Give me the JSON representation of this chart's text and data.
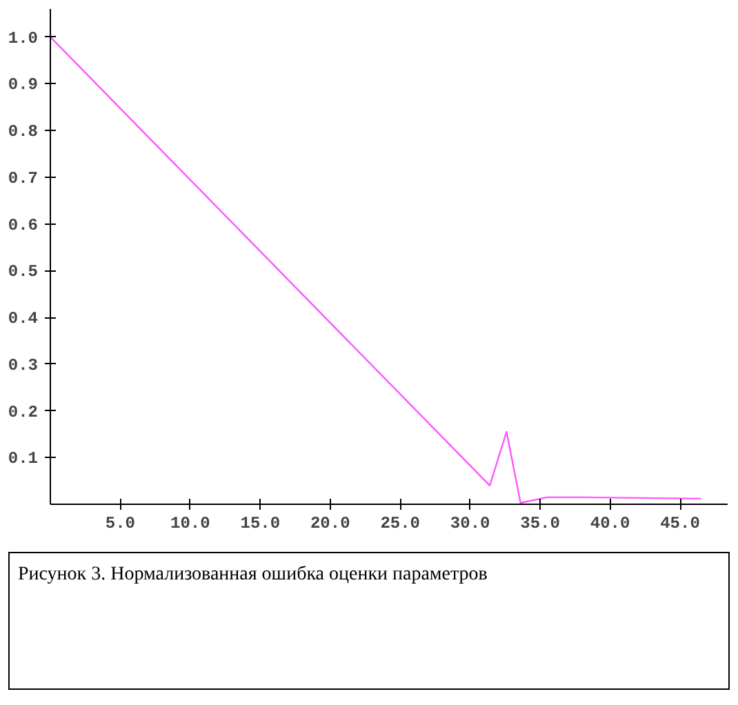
{
  "chart_data": {
    "type": "line",
    "x": [
      0,
      31.4,
      32.6,
      33.6,
      35.5,
      38,
      46.5
    ],
    "series": [
      {
        "color": "#ff55ff",
        "values": [
          1.0,
          0.04,
          0.155,
          0.003,
          0.015,
          0.015,
          0.012
        ]
      }
    ],
    "xlim": [
      0,
      48.4
    ],
    "ylim": [
      0,
      1.06
    ],
    "xticks": [
      {
        "value": 5,
        "label": "5.0"
      },
      {
        "value": 10,
        "label": "10.0"
      },
      {
        "value": 15,
        "label": "15.0"
      },
      {
        "value": 20,
        "label": "20.0"
      },
      {
        "value": 25,
        "label": "25.0"
      },
      {
        "value": 30,
        "label": "30.0"
      },
      {
        "value": 35,
        "label": "35.0"
      },
      {
        "value": 40,
        "label": "40.0"
      },
      {
        "value": 45,
        "label": "45.0"
      }
    ],
    "yticks": [
      {
        "value": 0.1,
        "label": "0.1"
      },
      {
        "value": 0.2,
        "label": "0.2"
      },
      {
        "value": 0.3,
        "label": "0.3"
      },
      {
        "value": 0.4,
        "label": "0.4"
      },
      {
        "value": 0.5,
        "label": "0.5"
      },
      {
        "value": 0.6,
        "label": "0.6"
      },
      {
        "value": 0.7,
        "label": "0.7"
      },
      {
        "value": 0.8,
        "label": "0.8"
      },
      {
        "value": 0.9,
        "label": "0.9"
      },
      {
        "value": 1.0,
        "label": "1.0"
      }
    ],
    "grid": false,
    "annotations": [
      "Рисунок 3. Нормализованная ошибка оценки параметров"
    ]
  }
}
